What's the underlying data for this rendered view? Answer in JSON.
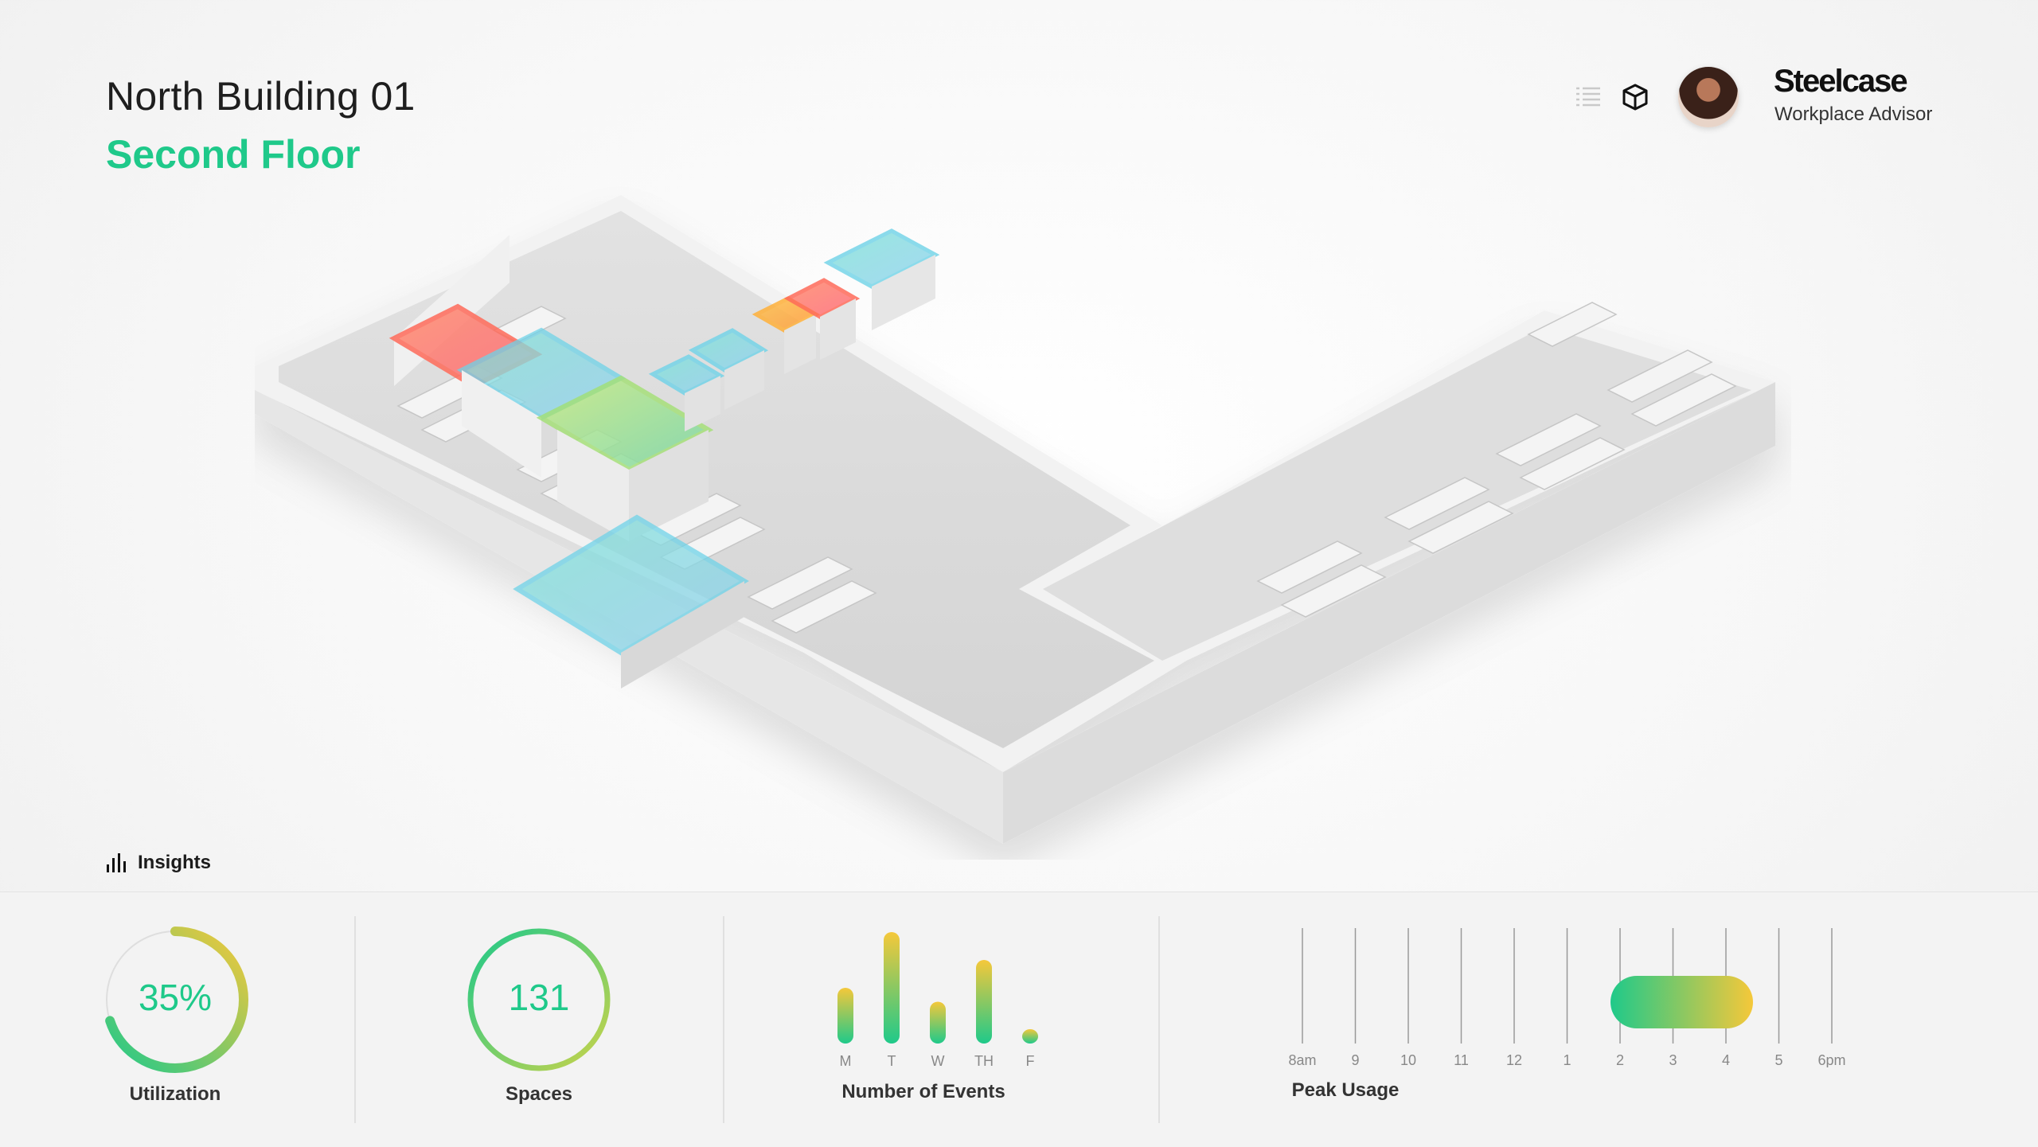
{
  "header": {
    "building": "North Building 01",
    "floor": "Second Floor"
  },
  "toolbar": {
    "list_icon": "list-icon",
    "cube_icon": "3d-cube-icon"
  },
  "user": {
    "brand": "Steelcase",
    "role": "Workplace Advisor"
  },
  "insights": {
    "label": "Insights",
    "utilization": {
      "value": "35%",
      "label": "Utilization",
      "fraction": 0.35
    },
    "spaces": {
      "value": "131",
      "label": "Spaces"
    },
    "events": {
      "label": "Number of Events",
      "days": [
        "M",
        "T",
        "W",
        "TH",
        "F"
      ],
      "counts": [
        4,
        8,
        3,
        6,
        1
      ]
    },
    "peak": {
      "label": "Peak Usage",
      "hours": [
        "8am",
        "9",
        "10",
        "11",
        "12",
        "1",
        "2",
        "3",
        "4",
        "5",
        "6pm"
      ],
      "range_start": "2",
      "range_end": "4"
    }
  },
  "colors": {
    "accent": "#1fc98a",
    "room_blue": "#6fd3e8",
    "room_red": "#ff6b5a",
    "room_orange": "#ffb13a",
    "room_green": "#a6e07a",
    "gradient_start": "#1fc98a",
    "gradient_end": "#f5c83a"
  }
}
